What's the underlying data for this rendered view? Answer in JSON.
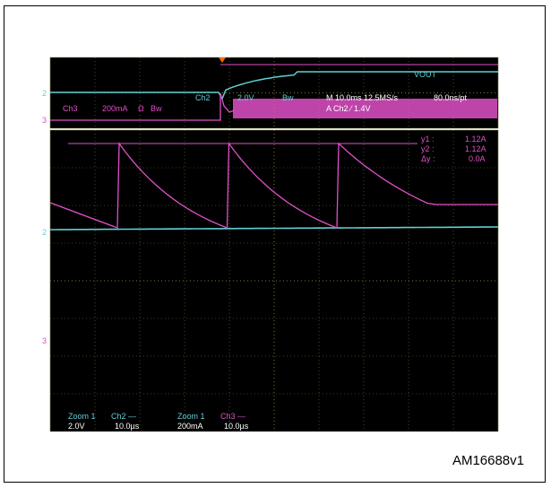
{
  "colors": {
    "background": "#000000",
    "grid": "#7a7a40",
    "ch2": "#5fd0d4",
    "ch3": "#e050c8",
    "marker": "#ff6a00"
  },
  "header": {
    "ch2_setting": "Ch2",
    "ch2_volts": "2.0V",
    "ch2_bw": "Bw",
    "timebase": "M 10.0ms 12.5MS/s",
    "record": "80.0ns/pt",
    "ch3_setting": "Ch3",
    "ch3_scale": "200mA",
    "ch3_coupling": "Ω",
    "ch3_bw": "Bw",
    "trigger": "A  Ch2  ⁄  1.4V",
    "vout_label": "VOUT",
    "ch2_marker": "2",
    "ch3_marker": "3"
  },
  "cursors": {
    "y1_label": "y1 :",
    "y1_value": "1.12A",
    "y2_label": "y2 :",
    "y2_value": "1.12A",
    "dy_label": "Δy :",
    "dy_value": "0.0A"
  },
  "zoom_footer": {
    "z1_title": "Zoom 1",
    "z1_ch": "Ch2 —",
    "z1_scale": "2.0V",
    "z1_time": "10.0µs",
    "z2_title": "Zoom 1",
    "z2_ch": "Ch3 —",
    "z2_scale": "200mA",
    "z2_time": "10.0µs"
  },
  "reference": "AM16688v1",
  "chart_data": {
    "type": "line",
    "zoom_timebase_us_per_div": 10.0,
    "x_unit": "µs",
    "ch3_current_A": {
      "peak": 1.12,
      "valley": 0.0,
      "ramp_up_times_us": [
        1.0,
        25.5,
        50.0
      ],
      "peak_times_us": [
        12.0,
        37.0,
        62.0
      ]
    },
    "ch2_output_level": "near 0 V (startup)",
    "xlim": [
      0,
      100
    ]
  }
}
